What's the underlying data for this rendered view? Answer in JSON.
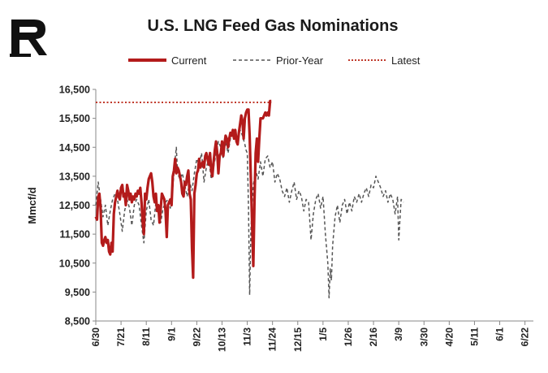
{
  "chart_data": {
    "type": "line",
    "title": "U.S. LNG Feed Gas Nominations",
    "ylabel": "Mmcf/d",
    "xlabel": "",
    "ylim": [
      8500,
      16500
    ],
    "yticks": [
      8500,
      9500,
      10500,
      11500,
      12500,
      13500,
      14500,
      15500,
      16500
    ],
    "ytick_labels": [
      "8,500",
      "9,500",
      "10,500",
      "11,500",
      "12,500",
      "13,500",
      "14,500",
      "15,500",
      "16,500"
    ],
    "x_tick_labels": [
      "6/30",
      "7/21",
      "8/11",
      "9/1",
      "9/22",
      "10/13",
      "11/3",
      "11/24",
      "12/15",
      "1/5",
      "1/26",
      "2/16",
      "3/9",
      "3/30",
      "4/20",
      "5/11",
      "6/1",
      "6/22"
    ],
    "x_tick_interval_days": 21,
    "x_range_days": [
      0,
      364
    ],
    "legend_position": "top-center",
    "grid": false,
    "series": [
      {
        "name": "Current",
        "color": "#b31b1b",
        "style": "solid",
        "points": [
          [
            0,
            12100
          ],
          [
            1,
            12000
          ],
          [
            2,
            12800
          ],
          [
            3,
            12900
          ],
          [
            4,
            12400
          ],
          [
            5,
            11200
          ],
          [
            6,
            11100
          ],
          [
            7,
            11300
          ],
          [
            8,
            11400
          ],
          [
            9,
            11200
          ],
          [
            10,
            11300
          ],
          [
            11,
            10900
          ],
          [
            12,
            10800
          ],
          [
            13,
            11200
          ],
          [
            14,
            10900
          ],
          [
            15,
            12200
          ],
          [
            16,
            12600
          ],
          [
            17,
            12800
          ],
          [
            18,
            13000
          ],
          [
            19,
            12800
          ],
          [
            20,
            12700
          ],
          [
            21,
            13100
          ],
          [
            22,
            13200
          ],
          [
            23,
            12800
          ],
          [
            24,
            12900
          ],
          [
            25,
            12500
          ],
          [
            26,
            13200
          ],
          [
            27,
            13000
          ],
          [
            28,
            12700
          ],
          [
            29,
            12900
          ],
          [
            30,
            12600
          ],
          [
            31,
            12800
          ],
          [
            32,
            12700
          ],
          [
            33,
            12900
          ],
          [
            34,
            12800
          ],
          [
            35,
            13000
          ],
          [
            36,
            12900
          ],
          [
            37,
            13100
          ],
          [
            38,
            12600
          ],
          [
            39,
            11900
          ],
          [
            40,
            11500
          ],
          [
            41,
            12900
          ],
          [
            42,
            12700
          ],
          [
            43,
            13100
          ],
          [
            44,
            13400
          ],
          [
            45,
            13500
          ],
          [
            46,
            13600
          ],
          [
            47,
            13300
          ],
          [
            48,
            12800
          ],
          [
            49,
            12600
          ],
          [
            50,
            12900
          ],
          [
            51,
            12300
          ],
          [
            52,
            12500
          ],
          [
            53,
            11900
          ],
          [
            54,
            12400
          ],
          [
            55,
            12900
          ],
          [
            56,
            12800
          ],
          [
            57,
            12700
          ],
          [
            58,
            12300
          ],
          [
            59,
            11400
          ],
          [
            60,
            12500
          ],
          [
            61,
            12600
          ],
          [
            62,
            12700
          ],
          [
            63,
            12500
          ],
          [
            64,
            13500
          ],
          [
            65,
            13700
          ],
          [
            66,
            14100
          ],
          [
            67,
            13600
          ],
          [
            68,
            13800
          ],
          [
            69,
            13700
          ],
          [
            70,
            13500
          ],
          [
            71,
            13300
          ],
          [
            72,
            12900
          ],
          [
            73,
            12800
          ],
          [
            74,
            13300
          ],
          [
            75,
            13200
          ],
          [
            76,
            13500
          ],
          [
            77,
            13700
          ],
          [
            78,
            12900
          ],
          [
            79,
            12700
          ],
          [
            80,
            11000
          ],
          [
            81,
            10000
          ],
          [
            82,
            12900
          ],
          [
            83,
            13200
          ],
          [
            84,
            13600
          ],
          [
            85,
            13700
          ],
          [
            86,
            14100
          ],
          [
            87,
            13800
          ],
          [
            88,
            13900
          ],
          [
            89,
            14000
          ],
          [
            90,
            13800
          ],
          [
            91,
            14200
          ],
          [
            92,
            14300
          ],
          [
            93,
            14100
          ],
          [
            94,
            13900
          ],
          [
            95,
            14300
          ],
          [
            96,
            13700
          ],
          [
            97,
            13500
          ],
          [
            98,
            14000
          ],
          [
            99,
            14400
          ],
          [
            100,
            14700
          ],
          [
            101,
            14300
          ],
          [
            102,
            13600
          ],
          [
            103,
            14200
          ],
          [
            104,
            14300
          ],
          [
            105,
            14700
          ],
          [
            106,
            14200
          ],
          [
            107,
            14600
          ],
          [
            108,
            14900
          ],
          [
            109,
            14800
          ],
          [
            110,
            14500
          ],
          [
            111,
            14800
          ],
          [
            112,
            15000
          ],
          [
            113,
            14900
          ],
          [
            114,
            15100
          ],
          [
            115,
            14800
          ],
          [
            116,
            15100
          ],
          [
            117,
            14700
          ],
          [
            118,
            14600
          ],
          [
            119,
            15000
          ],
          [
            120,
            15300
          ],
          [
            121,
            15600
          ],
          [
            122,
            15400
          ],
          [
            123,
            14800
          ],
          [
            124,
            15500
          ],
          [
            125,
            15700
          ],
          [
            126,
            15800
          ],
          [
            127,
            15800
          ],
          [
            128,
            14900
          ],
          [
            129,
            13400
          ],
          [
            130,
            11900
          ],
          [
            131,
            10400
          ],
          [
            132,
            12700
          ],
          [
            133,
            14300
          ],
          [
            134,
            14800
          ],
          [
            135,
            14000
          ],
          [
            136,
            14800
          ],
          [
            137,
            15500
          ],
          [
            138,
            15500
          ],
          [
            139,
            15500
          ],
          [
            140,
            15600
          ],
          [
            141,
            15700
          ],
          [
            142,
            15600
          ],
          [
            143,
            15700
          ],
          [
            144,
            15600
          ],
          [
            145,
            16100
          ],
          [
            146,
            16100
          ]
        ]
      },
      {
        "name": "Prior-Year",
        "color": "#555555",
        "style": "dashed",
        "points": [
          [
            0,
            12500
          ],
          [
            2,
            13300
          ],
          [
            3,
            13000
          ],
          [
            4,
            12700
          ],
          [
            6,
            12100
          ],
          [
            8,
            12500
          ],
          [
            10,
            11800
          ],
          [
            12,
            12300
          ],
          [
            14,
            12700
          ],
          [
            16,
            12900
          ],
          [
            18,
            12700
          ],
          [
            20,
            12200
          ],
          [
            22,
            11600
          ],
          [
            24,
            12300
          ],
          [
            26,
            12700
          ],
          [
            28,
            12400
          ],
          [
            30,
            11800
          ],
          [
            32,
            12500
          ],
          [
            34,
            12700
          ],
          [
            36,
            12500
          ],
          [
            38,
            11800
          ],
          [
            40,
            11200
          ],
          [
            42,
            12300
          ],
          [
            44,
            12700
          ],
          [
            46,
            12000
          ],
          [
            48,
            11800
          ],
          [
            50,
            12600
          ],
          [
            52,
            12300
          ],
          [
            54,
            11900
          ],
          [
            56,
            12400
          ],
          [
            58,
            12600
          ],
          [
            60,
            12700
          ],
          [
            62,
            12400
          ],
          [
            64,
            13100
          ],
          [
            66,
            14100
          ],
          [
            67,
            14500
          ],
          [
            68,
            13600
          ],
          [
            70,
            13400
          ],
          [
            72,
            13600
          ],
          [
            74,
            13200
          ],
          [
            76,
            12800
          ],
          [
            78,
            13300
          ],
          [
            80,
            13000
          ],
          [
            82,
            13600
          ],
          [
            84,
            14100
          ],
          [
            86,
            13900
          ],
          [
            88,
            14300
          ],
          [
            90,
            13300
          ],
          [
            92,
            13800
          ],
          [
            94,
            14100
          ],
          [
            96,
            13400
          ],
          [
            98,
            13800
          ],
          [
            100,
            14300
          ],
          [
            102,
            14700
          ],
          [
            104,
            14500
          ],
          [
            106,
            14100
          ],
          [
            108,
            14700
          ],
          [
            110,
            14300
          ],
          [
            112,
            14800
          ],
          [
            114,
            15000
          ],
          [
            116,
            14800
          ],
          [
            118,
            14600
          ],
          [
            120,
            15100
          ],
          [
            122,
            14900
          ],
          [
            124,
            14600
          ],
          [
            125,
            14400
          ],
          [
            126,
            14300
          ],
          [
            127,
            12400
          ],
          [
            128,
            9400
          ],
          [
            129,
            11600
          ],
          [
            131,
            13200
          ],
          [
            133,
            13700
          ],
          [
            135,
            13400
          ],
          [
            137,
            14000
          ],
          [
            139,
            13500
          ],
          [
            141,
            14100
          ],
          [
            143,
            14200
          ],
          [
            145,
            13800
          ],
          [
            147,
            14000
          ],
          [
            149,
            13300
          ],
          [
            151,
            13600
          ],
          [
            153,
            13400
          ],
          [
            155,
            13000
          ],
          [
            157,
            12800
          ],
          [
            159,
            13100
          ],
          [
            161,
            12600
          ],
          [
            163,
            13000
          ],
          [
            165,
            13300
          ],
          [
            167,
            12700
          ],
          [
            169,
            13000
          ],
          [
            171,
            12800
          ],
          [
            173,
            12300
          ],
          [
            175,
            12700
          ],
          [
            177,
            12600
          ],
          [
            179,
            11300
          ],
          [
            181,
            12200
          ],
          [
            183,
            12700
          ],
          [
            185,
            12900
          ],
          [
            187,
            12400
          ],
          [
            189,
            12800
          ],
          [
            191,
            11500
          ],
          [
            193,
            10500
          ],
          [
            194,
            9300
          ],
          [
            195,
            10300
          ],
          [
            196,
            9900
          ],
          [
            197,
            11100
          ],
          [
            199,
            12100
          ],
          [
            201,
            12500
          ],
          [
            203,
            11900
          ],
          [
            205,
            12500
          ],
          [
            207,
            12700
          ],
          [
            209,
            12200
          ],
          [
            211,
            12600
          ],
          [
            213,
            12300
          ],
          [
            215,
            12800
          ],
          [
            217,
            12600
          ],
          [
            219,
            12900
          ],
          [
            221,
            12600
          ],
          [
            223,
            12900
          ],
          [
            225,
            13100
          ],
          [
            227,
            12800
          ],
          [
            229,
            13200
          ],
          [
            231,
            13100
          ],
          [
            233,
            13500
          ],
          [
            235,
            13300
          ],
          [
            237,
            13100
          ],
          [
            239,
            12800
          ],
          [
            241,
            13000
          ],
          [
            243,
            12600
          ],
          [
            245,
            12900
          ],
          [
            247,
            12700
          ],
          [
            249,
            12200
          ],
          [
            251,
            12800
          ],
          [
            252,
            11300
          ],
          [
            253,
            12000
          ],
          [
            254,
            12700
          ],
          [
            256,
            12600
          ]
        ]
      },
      {
        "name": "Latest",
        "color": "#c0392b",
        "style": "dotted",
        "value": 16050
      }
    ]
  },
  "legend": {
    "current_label": "Current",
    "prior_label": "Prior-Year",
    "latest_label": "Latest"
  }
}
